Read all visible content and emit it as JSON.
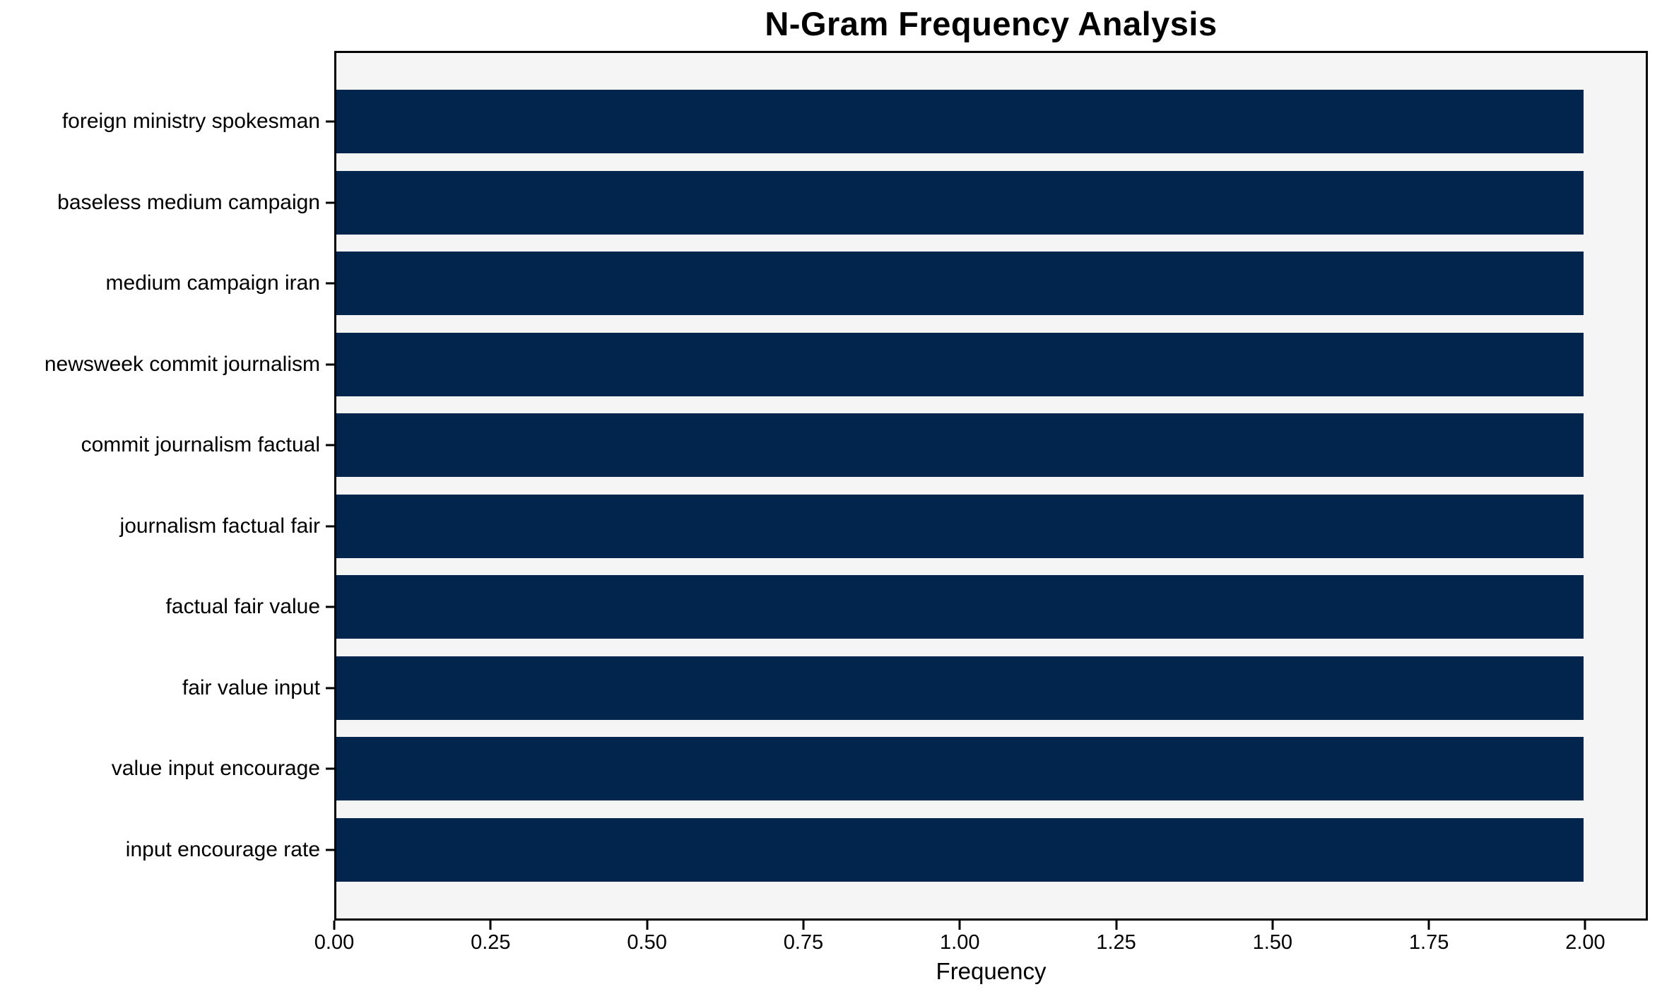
{
  "figure": {
    "background": "#ffffff",
    "plot_background": "#f5f5f5",
    "axis_color": "#000000"
  },
  "chart_data": {
    "type": "bar",
    "orientation": "horizontal",
    "title": "N-Gram Frequency Analysis",
    "xlabel": "Frequency",
    "ylabel": "",
    "categories": [
      "foreign ministry spokesman",
      "baseless medium campaign",
      "medium campaign iran",
      "newsweek commit journalism",
      "commit journalism factual",
      "journalism factual fair",
      "factual fair value",
      "fair value input",
      "value input encourage",
      "input encourage rate"
    ],
    "values": [
      2,
      2,
      2,
      2,
      2,
      2,
      2,
      2,
      2,
      2
    ],
    "bar_color": "#02254e",
    "xlim": [
      0,
      2.1
    ],
    "xticks": [
      0.0,
      0.25,
      0.5,
      0.75,
      1.0,
      1.25,
      1.5,
      1.75,
      2.0
    ],
    "xtick_labels": [
      "0.00",
      "0.25",
      "0.50",
      "0.75",
      "1.00",
      "1.25",
      "1.50",
      "1.75",
      "2.00"
    ],
    "grid": false,
    "legend": null
  }
}
